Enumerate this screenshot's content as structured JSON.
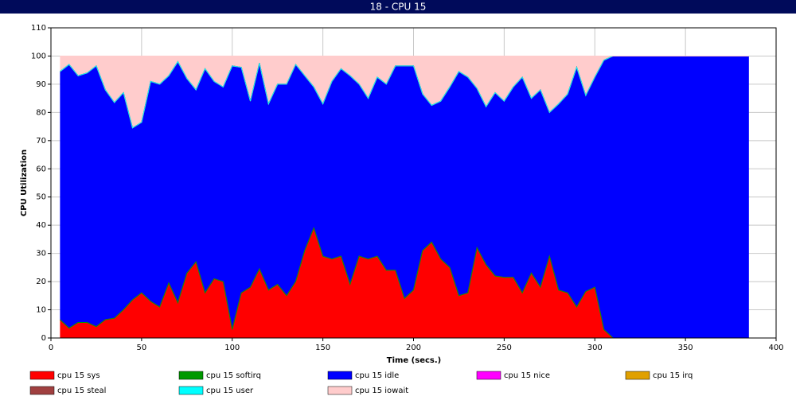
{
  "window_title": "18 - CPU 15",
  "chart_data": {
    "type": "stacked_area",
    "xlabel": "Time (secs.)",
    "ylabel": "CPU Utilization",
    "xlim": [
      0,
      400
    ],
    "xticks": [
      0,
      50,
      100,
      150,
      200,
      250,
      300,
      350,
      400
    ],
    "ylim": [
      0,
      110
    ],
    "yticks": [
      0,
      10,
      20,
      30,
      40,
      50,
      60,
      70,
      80,
      90,
      100,
      110
    ],
    "grid": true,
    "legend": "bottom",
    "x": [
      5,
      10,
      15,
      20,
      25,
      30,
      35,
      40,
      45,
      50,
      55,
      60,
      65,
      70,
      75,
      80,
      85,
      90,
      95,
      100,
      105,
      110,
      115,
      120,
      125,
      130,
      135,
      140,
      145,
      150,
      155,
      160,
      165,
      170,
      175,
      180,
      185,
      190,
      195,
      200,
      205,
      210,
      215,
      220,
      225,
      230,
      235,
      240,
      245,
      250,
      255,
      260,
      265,
      270,
      275,
      280,
      285,
      290,
      295,
      300,
      305,
      310,
      315,
      320,
      325,
      330,
      335,
      340,
      345,
      350,
      355,
      360,
      365,
      370,
      375,
      380,
      385
    ],
    "series": [
      {
        "name": "cpu 15 sys",
        "color": "#ff0000",
        "values": [
          6.5,
          3.5,
          5.5,
          5.5,
          4,
          6.5,
          7,
          10,
          13.5,
          16,
          13,
          11,
          19.5,
          12.5,
          23,
          27,
          16,
          21,
          20,
          3,
          16,
          18,
          24.5,
          17,
          19,
          15,
          20,
          31,
          39,
          29,
          28,
          29,
          19,
          29,
          28,
          29,
          24,
          24,
          14,
          17,
          31,
          34,
          28,
          25,
          15,
          16,
          32,
          26,
          22,
          21.5,
          21.5,
          16,
          23,
          18,
          29,
          17,
          16,
          11,
          16.5,
          18,
          3,
          0,
          0,
          0,
          0,
          0,
          0,
          0,
          0,
          0,
          0,
          0,
          0,
          0,
          0,
          0,
          0
        ]
      },
      {
        "name": "cpu 15 softirq",
        "color": "#009900",
        "values": [
          0,
          0,
          0,
          0,
          0,
          0,
          0,
          0,
          0,
          0,
          0,
          0,
          0,
          0,
          0,
          0,
          0,
          0,
          0,
          0,
          0,
          0,
          0,
          0,
          0,
          0,
          0,
          0,
          0,
          0,
          0,
          0,
          0,
          0,
          0,
          0,
          0,
          0,
          0,
          0,
          0,
          0,
          0,
          0,
          0,
          0,
          0,
          0,
          0,
          0,
          0,
          0,
          0,
          0,
          0,
          0,
          0,
          0,
          0,
          0,
          0,
          0,
          0,
          0,
          0,
          0,
          0,
          0,
          0,
          0,
          0,
          0,
          0,
          0,
          0,
          0,
          0
        ]
      },
      {
        "name": "cpu 15 idle",
        "color": "#0000ff",
        "values": [
          88,
          93.5,
          87.5,
          88.5,
          92.5,
          81.5,
          76.5,
          77,
          61,
          60.5,
          78,
          79,
          73.5,
          85.5,
          69,
          61,
          79.5,
          70,
          69,
          93.5,
          80,
          66,
          73,
          66,
          71,
          75,
          77,
          62,
          50,
          54,
          63,
          66.5,
          74,
          61,
          57,
          63.5,
          66,
          72.5,
          82.5,
          79.5,
          55.5,
          48.5,
          56,
          64,
          79.5,
          76.5,
          56.5,
          56,
          65,
          62.5,
          67.5,
          76.5,
          62,
          70,
          51,
          66,
          70.5,
          85,
          69.5,
          74.5,
          95.5,
          100,
          100,
          100,
          100,
          100,
          100,
          100,
          100,
          100,
          100,
          100,
          100,
          100,
          100,
          100,
          100
        ]
      },
      {
        "name": "cpu 15 nice",
        "color": "#ff00ff",
        "values": [
          0,
          0,
          0,
          0,
          0,
          0,
          0,
          0,
          0,
          0,
          0,
          0,
          0,
          0,
          0,
          0,
          0,
          0,
          0,
          0,
          0,
          0,
          0,
          0,
          0,
          0,
          0,
          0,
          0,
          0,
          0,
          0,
          0,
          0,
          0,
          0,
          0,
          0,
          0,
          0,
          0,
          0,
          0,
          0,
          0,
          0,
          0,
          0,
          0,
          0,
          0,
          0,
          0,
          0,
          0,
          0,
          0,
          0,
          0,
          0,
          0,
          0,
          0,
          0,
          0,
          0,
          0,
          0,
          0,
          0,
          0,
          0,
          0,
          0,
          0,
          0,
          0
        ]
      },
      {
        "name": "cpu 15 irq",
        "color": "#e0a000",
        "values": [
          0,
          0,
          0,
          0,
          0,
          0,
          0,
          0,
          0,
          0,
          0,
          0,
          0,
          0,
          0,
          0,
          0,
          0,
          0,
          0,
          0,
          0,
          0,
          0,
          0,
          0,
          0,
          0,
          0,
          0,
          0,
          0,
          0,
          0,
          0,
          0,
          0,
          0,
          0,
          0,
          0,
          0,
          0,
          0,
          0,
          0,
          0,
          0,
          0,
          0,
          0,
          0,
          0,
          0,
          0,
          0,
          0,
          0,
          0,
          0,
          0,
          0,
          0,
          0,
          0,
          0,
          0,
          0,
          0,
          0,
          0,
          0,
          0,
          0,
          0,
          0,
          0
        ]
      },
      {
        "name": "cpu 15 steal",
        "color": "#a04040",
        "values": [
          0,
          0,
          0,
          0,
          0,
          0,
          0,
          0,
          0,
          0,
          0,
          0,
          0,
          0,
          0,
          0,
          0,
          0,
          0,
          0,
          0,
          0,
          0,
          0,
          0,
          0,
          0,
          0,
          0,
          0,
          0,
          0,
          0,
          0,
          0,
          0,
          0,
          0,
          0,
          0,
          0,
          0,
          0,
          0,
          0,
          0,
          0,
          0,
          0,
          0,
          0,
          0,
          0,
          0,
          0,
          0,
          0,
          0,
          0,
          0,
          0,
          0,
          0,
          0,
          0,
          0,
          0,
          0,
          0,
          0,
          0,
          0,
          0,
          0,
          0,
          0,
          0
        ]
      },
      {
        "name": "cpu 15 user",
        "color": "#00ffff",
        "values": [
          0,
          0,
          0,
          0,
          0,
          0,
          0,
          0,
          0,
          0,
          0,
          0,
          0,
          0,
          0,
          0,
          0,
          0,
          0,
          0,
          0,
          0,
          0,
          0,
          0,
          0,
          0,
          0,
          0,
          0,
          0,
          0,
          0,
          0,
          0,
          0,
          0,
          0,
          0,
          0,
          0,
          0,
          0,
          0,
          0,
          0,
          0,
          0,
          0,
          0,
          0,
          0,
          0,
          0,
          0,
          0,
          0,
          0,
          0,
          0,
          0,
          0,
          0,
          0,
          0,
          0,
          0,
          0,
          0,
          0,
          0,
          0,
          0,
          0,
          0,
          0,
          0
        ]
      },
      {
        "name": "cpu 15 iowait",
        "color": "#ffcccc",
        "values": [
          5.5,
          3,
          7,
          6,
          3.5,
          12,
          16.5,
          13,
          25.5,
          23.5,
          9,
          10,
          7,
          2,
          8,
          12,
          4.5,
          9,
          11,
          3.5,
          4,
          16,
          2.5,
          17,
          10,
          10,
          3,
          7,
          11,
          17,
          9,
          4.5,
          7,
          10,
          15,
          7.5,
          10,
          3.5,
          3.5,
          3.5,
          13.5,
          17.5,
          16,
          11,
          5.5,
          7.5,
          11.5,
          18,
          13,
          16,
          11,
          7.5,
          15,
          12,
          20,
          17,
          13.5,
          4,
          14,
          7.5,
          1.5,
          0,
          0,
          0,
          0,
          0,
          0,
          0,
          0,
          0,
          0,
          0,
          0,
          0,
          0,
          0,
          0
        ]
      }
    ]
  }
}
